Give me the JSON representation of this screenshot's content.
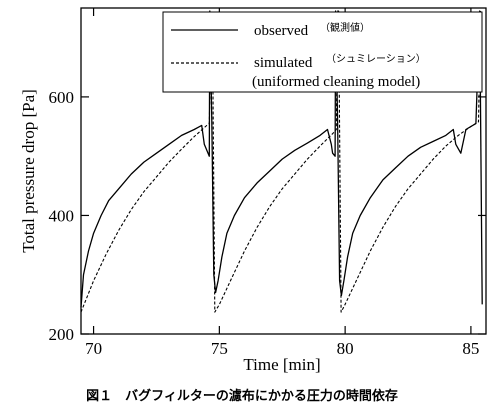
{
  "chart_data": {
    "type": "line",
    "xlabel": "Time [min]",
    "ylabel": "Total pressure drop [Pa]",
    "xlim": [
      69.5,
      85.6
    ],
    "ylim": [
      200,
      750
    ],
    "x_ticks": [
      70,
      75,
      80,
      85
    ],
    "y_ticks": [
      200,
      400,
      600
    ],
    "legend_position": "top-right",
    "series": [
      {
        "name": "observed",
        "name_note": "（観測値）",
        "style": "solid",
        "color": "#000000",
        "points": [
          [
            69.5,
            245
          ],
          [
            69.6,
            300
          ],
          [
            69.8,
            340
          ],
          [
            70.0,
            370
          ],
          [
            70.3,
            400
          ],
          [
            70.6,
            425
          ],
          [
            71.0,
            445
          ],
          [
            71.5,
            470
          ],
          [
            72.0,
            490
          ],
          [
            72.5,
            505
          ],
          [
            73.0,
            520
          ],
          [
            73.5,
            535
          ],
          [
            74.0,
            545
          ],
          [
            74.3,
            552
          ],
          [
            74.4,
            520
          ],
          [
            74.5,
            510
          ],
          [
            74.6,
            500
          ],
          [
            74.62,
            745
          ],
          [
            74.7,
            560
          ],
          [
            74.78,
            300
          ],
          [
            74.85,
            270
          ],
          [
            74.95,
            290
          ],
          [
            75.1,
            330
          ],
          [
            75.3,
            370
          ],
          [
            75.6,
            400
          ],
          [
            76.0,
            430
          ],
          [
            76.5,
            455
          ],
          [
            77.0,
            475
          ],
          [
            77.5,
            495
          ],
          [
            78.0,
            510
          ],
          [
            78.5,
            522
          ],
          [
            79.0,
            535
          ],
          [
            79.3,
            545
          ],
          [
            79.45,
            520
          ],
          [
            79.5,
            505
          ],
          [
            79.6,
            500
          ],
          [
            79.62,
            745
          ],
          [
            79.7,
            560
          ],
          [
            79.78,
            290
          ],
          [
            79.85,
            265
          ],
          [
            79.95,
            290
          ],
          [
            80.1,
            330
          ],
          [
            80.3,
            370
          ],
          [
            80.6,
            400
          ],
          [
            81.0,
            430
          ],
          [
            81.5,
            460
          ],
          [
            82.0,
            480
          ],
          [
            82.5,
            500
          ],
          [
            83.0,
            515
          ],
          [
            83.5,
            525
          ],
          [
            84.0,
            535
          ],
          [
            84.3,
            545
          ],
          [
            84.4,
            520
          ],
          [
            84.6,
            505
          ],
          [
            84.8,
            545
          ],
          [
            85.0,
            550
          ],
          [
            85.2,
            555
          ],
          [
            85.35,
            745
          ],
          [
            85.45,
            250
          ]
        ]
      },
      {
        "name": "simulated",
        "name_note": "（シュミレーション）",
        "name_line2": "(uniformed cleaning model)",
        "style": "dashed",
        "color": "#000000",
        "points": [
          [
            69.5,
            237
          ],
          [
            70.0,
            290
          ],
          [
            70.5,
            335
          ],
          [
            71.0,
            375
          ],
          [
            71.5,
            410
          ],
          [
            72.0,
            440
          ],
          [
            72.5,
            465
          ],
          [
            73.0,
            490
          ],
          [
            73.5,
            512
          ],
          [
            74.0,
            533
          ],
          [
            74.5,
            552
          ],
          [
            74.6,
            555
          ],
          [
            74.68,
            745
          ],
          [
            74.72,
            745
          ],
          [
            74.82,
            237
          ],
          [
            75.0,
            250
          ],
          [
            75.5,
            295
          ],
          [
            76.0,
            340
          ],
          [
            76.5,
            380
          ],
          [
            77.0,
            415
          ],
          [
            77.5,
            445
          ],
          [
            78.0,
            470
          ],
          [
            78.5,
            495
          ],
          [
            79.0,
            517
          ],
          [
            79.5,
            538
          ],
          [
            79.65,
            545
          ],
          [
            79.7,
            745
          ],
          [
            79.74,
            745
          ],
          [
            79.84,
            237
          ],
          [
            80.0,
            250
          ],
          [
            80.5,
            295
          ],
          [
            81.0,
            340
          ],
          [
            81.5,
            380
          ],
          [
            82.0,
            415
          ],
          [
            82.5,
            445
          ],
          [
            83.0,
            470
          ],
          [
            83.5,
            495
          ],
          [
            84.0,
            517
          ],
          [
            84.5,
            535
          ],
          [
            85.0,
            550
          ],
          [
            85.3,
            558
          ],
          [
            85.38,
            745
          ]
        ]
      }
    ]
  },
  "caption": "図１　バグフィルターの濾布にかかる圧力の時間依存"
}
